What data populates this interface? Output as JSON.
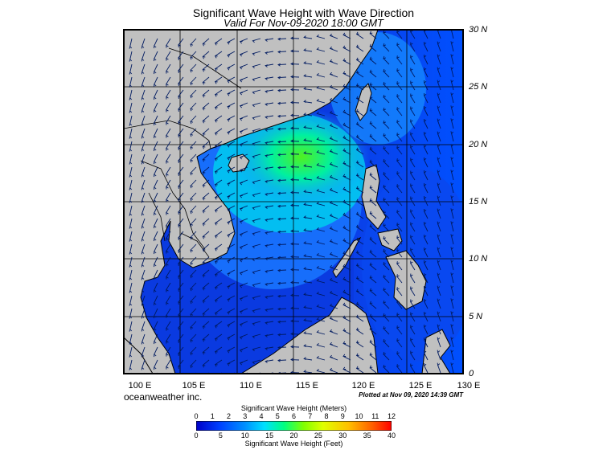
{
  "title": "Significant Wave Height with Wave Direction",
  "subtitle": "Valid For Nov-09-2020 18:00 GMT",
  "credit": "oceanweather inc.",
  "plotted": "Plotted at Nov 09, 2020 14:39 GMT",
  "longitude_labels": [
    "100 E",
    "105 E",
    "110 E",
    "115 E",
    "120 E",
    "125 E",
    "130 E"
  ],
  "latitude_labels": [
    "30 N",
    "25 N",
    "20 N",
    "15 N",
    "10 N",
    "5 N",
    "0"
  ],
  "colorbar": {
    "title_meters": "Significant Wave Height (Meters)",
    "title_feet": "Significant Wave Height (Feet)",
    "ticks_meters": [
      "0",
      "1",
      "2",
      "3",
      "4",
      "5",
      "6",
      "7",
      "8",
      "9",
      "10",
      "11",
      "12"
    ],
    "ticks_feet": [
      "0",
      "5",
      "10",
      "15",
      "20",
      "25",
      "30",
      "35",
      "40"
    ],
    "colors": [
      "#0000c8",
      "#0040ff",
      "#0090ff",
      "#00e0ff",
      "#00ff80",
      "#80ff00",
      "#e0ff00",
      "#ffc000",
      "#ff6000",
      "#ff0000"
    ]
  },
  "map": {
    "extent": {
      "lon": [
        100,
        130
      ],
      "lat": [
        0,
        30
      ]
    },
    "land_color": "#c0c0c0",
    "grid_color": "#000000",
    "wave_colors": {
      "calm": "#0a3ae0",
      "moderate": "#1a78ff",
      "high": "#00e6a0",
      "peak": "#50f020"
    }
  }
}
